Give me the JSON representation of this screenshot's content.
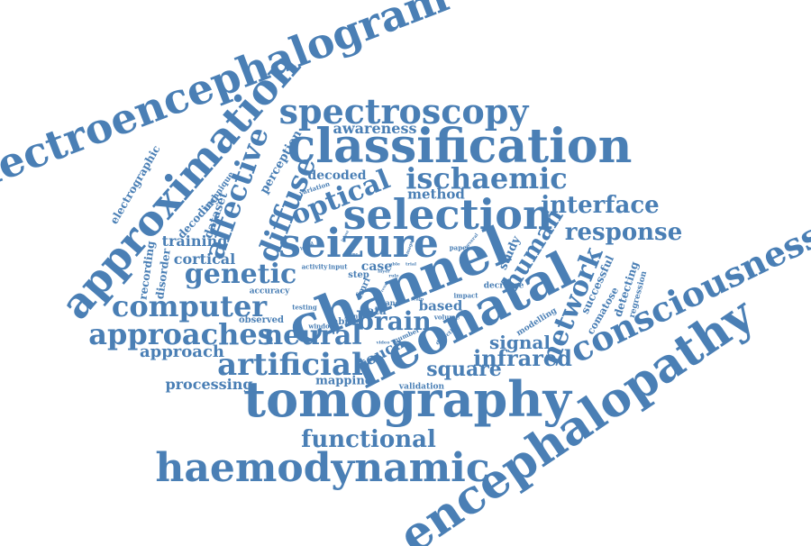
{
  "color": "#4a7fb5",
  "words": {
    "electroencephalogram": "electroencephalogram",
    "approximation": "approximation",
    "spectroscopy": "spectroscopy",
    "classification": "classification",
    "ischaemic": "ischaemic",
    "selection": "selection",
    "seizure": "seizure",
    "channel": "channel",
    "neonatal": "neonatal",
    "tomography": "tomography",
    "haemodynamic": "haemodynamic",
    "encephalopathy": "encephalopathy",
    "consciousness": "consciousness",
    "functional": "functional",
    "artificial": "artificial",
    "approaches": "approaches",
    "computer": "computer",
    "genetic": "genetic",
    "affective": "affective",
    "diffuse": "diffuse",
    "optical": "optical",
    "interface": "interface",
    "response": "response",
    "human": "human",
    "network": "network",
    "neural": "neural",
    "brain": "brain",
    "infrared": "infrared",
    "square": "square",
    "signal": "signal",
    "awareness": "awareness",
    "method": "method",
    "decoded": "decoded",
    "perception": "perception",
    "training": "training",
    "cortical": "cortical",
    "approach": "approach",
    "processing": "processing",
    "mapping": "mapping",
    "validation": "validation",
    "electrographic": "electrographic",
    "technique": "technique",
    "decoding": "decoding",
    "dataset": "dataset",
    "recording": "recording",
    "disorder": "disorder",
    "accuracy": "accuracy",
    "observed": "observed",
    "testing": "testing",
    "window": "window",
    "minute": "minute",
    "touch": "touch",
    "data": "data",
    "based": "based",
    "volume": "volume",
    "hand": "hand",
    "fabric": "fabric",
    "case": "case",
    "study": "study",
    "decrease": "decrease",
    "successful": "successful",
    "comatose": "comatose",
    "detecting": "detecting",
    "regression": "regression",
    "modelling": "modelling",
    "impact": "impact",
    "activity": "activity",
    "input": "input",
    "variation": "variation",
    "step": "step",
    "fmri": "fmri",
    "paper": "paper",
    "several": "several",
    "detection": "detection",
    "number": "number",
    "layer": "layer",
    "rule": "rule",
    "able": "able",
    "trial": "trial",
    "video": "video",
    "scalp": "scalp",
    "blood": "blood",
    "image": "image",
    "time": "time",
    "infant": "infant",
    "result": "result"
  }
}
